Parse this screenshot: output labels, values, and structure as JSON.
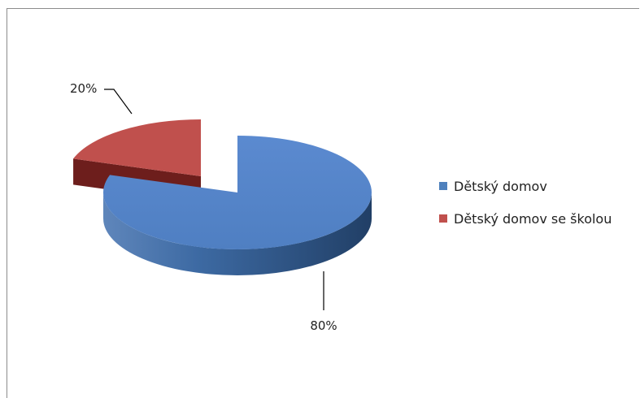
{
  "chart_data": {
    "type": "pie",
    "style": "3d-exploded",
    "categories": [
      "Dětský domov",
      "Dětský domov se školou"
    ],
    "values": [
      80,
      20
    ],
    "labels": [
      "80%",
      "20%"
    ],
    "colors": [
      "#4f81bd",
      "#c0504d"
    ],
    "side_colors": [
      "#2e5789",
      "#6d1e1c"
    ],
    "legend_position": "right"
  }
}
